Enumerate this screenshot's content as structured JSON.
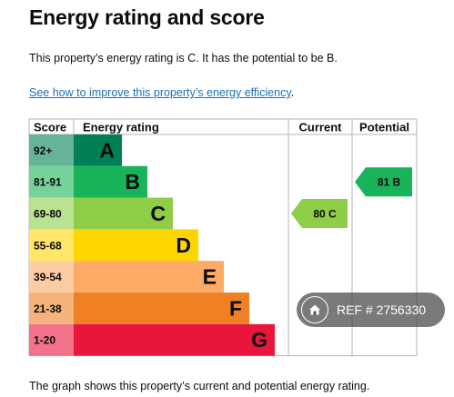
{
  "page": {
    "title": "Energy rating and score",
    "intro": "This property’s energy rating is C. It has the potential to be B.",
    "link": "See how to improve this property’s energy efficiency",
    "link_suffix": ".",
    "footer": "The graph shows this property’s current and potential energy rating."
  },
  "watermark": {
    "text": "REF # 2756330",
    "icon": "home-icon"
  },
  "chart_data": {
    "type": "table",
    "headers": {
      "score": "Score",
      "rating": "Energy rating",
      "current": "Current",
      "potential": "Potential"
    },
    "bands": [
      {
        "score": "92+",
        "letter": "A",
        "color": "#008054",
        "bg": "#66b398"
      },
      {
        "score": "81-91",
        "letter": "B",
        "color": "#19b459",
        "bg": "#75d29b"
      },
      {
        "score": "69-80",
        "letter": "C",
        "color": "#8dce46",
        "bg": "#bbe290"
      },
      {
        "score": "55-68",
        "letter": "D",
        "color": "#ffd500",
        "bg": "#ffe666"
      },
      {
        "score": "39-54",
        "letter": "E",
        "color": "#fcaa65",
        "bg": "#fdcca3"
      },
      {
        "score": "21-38",
        "letter": "F",
        "color": "#ef8023",
        "bg": "#f5b37b"
      },
      {
        "score": "1-20",
        "letter": "G",
        "color": "#e9153b",
        "bg": "#f27389"
      }
    ],
    "current": {
      "value": 80,
      "letter": "C",
      "label": "80  C",
      "color": "#8dce46"
    },
    "potential": {
      "value": 81,
      "letter": "B",
      "label": "81  B",
      "color": "#19b459"
    }
  }
}
